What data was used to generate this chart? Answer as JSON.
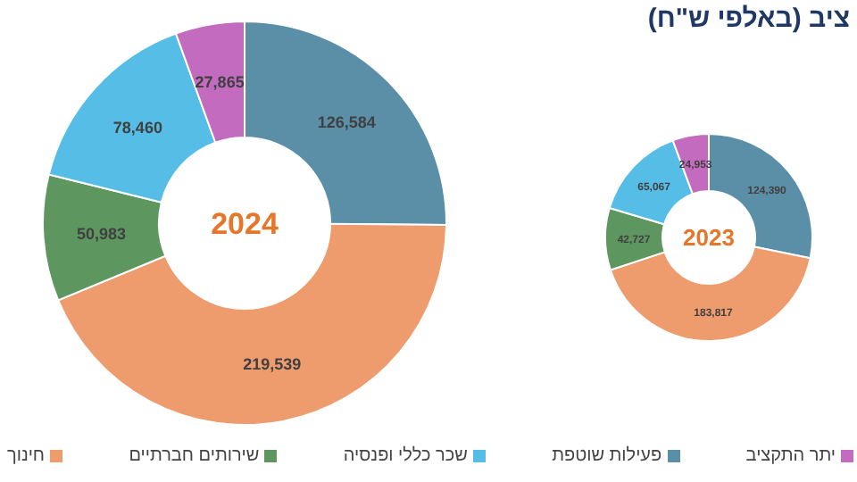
{
  "chart_data": [
    {
      "type": "donut",
      "categories": [
        "פעילות שוטפת",
        "חינוך",
        "שירותים חברתיים",
        "שכר כללי ופנסיה",
        "יתר התקציב"
      ],
      "values": [
        126584,
        219539,
        50983,
        78460,
        27865
      ],
      "value_labels": [
        "126,584",
        "219,539",
        "50,983",
        "78,460",
        "27,865"
      ],
      "colors": [
        "#5b8fa8",
        "#ee9b6e",
        "#5e9660",
        "#56bde6",
        "#c26bbf"
      ],
      "annotations": [
        "2024"
      ],
      "legend": "bottom"
    },
    {
      "type": "donut",
      "title": "ציב (באלפי ש\"ח)",
      "categories": [
        null,
        null,
        null,
        null,
        null
      ],
      "values": [
        124390,
        183817,
        42727,
        65067,
        24953
      ],
      "value_labels": [
        "124,390",
        "183,817",
        "42,727",
        "65,067",
        "24,953"
      ],
      "colors": [
        "#5b8fa8",
        "#ee9b6e",
        "#5e9660",
        "#56bde6",
        "#c26bbf"
      ],
      "annotations": [
        "2023"
      ]
    }
  ]
}
